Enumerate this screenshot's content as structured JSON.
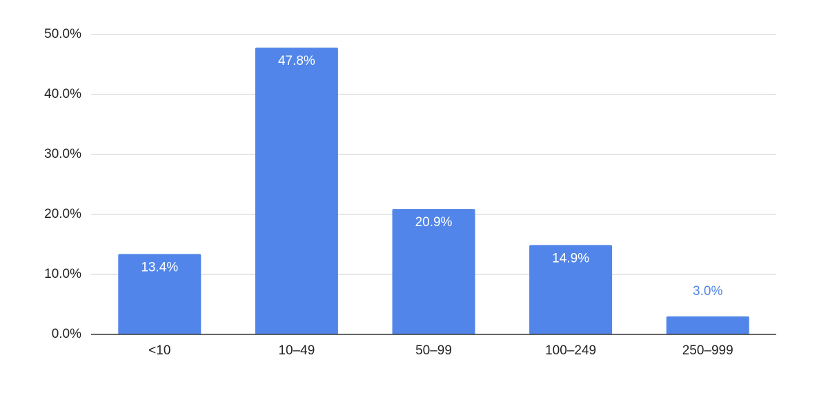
{
  "chart_data": {
    "type": "bar",
    "categories": [
      "<10",
      "10–49",
      "50–99",
      "100–249",
      "250–999"
    ],
    "values": [
      13.4,
      47.8,
      20.9,
      14.9,
      3.0
    ],
    "value_labels": [
      "13.4%",
      "47.8%",
      "20.9%",
      "14.9%",
      "3.0%"
    ],
    "color": "#5185e9",
    "ylim": [
      0,
      50
    ],
    "yticks": [
      {
        "value": 0,
        "label": "0.0%"
      },
      {
        "value": 10,
        "label": "10.0%"
      },
      {
        "value": 20,
        "label": "20.0%"
      },
      {
        "value": 30,
        "label": "30.0%"
      },
      {
        "value": 40,
        "label": "40.0%"
      },
      {
        "value": 50,
        "label": "50.0%"
      }
    ],
    "grid": true
  }
}
